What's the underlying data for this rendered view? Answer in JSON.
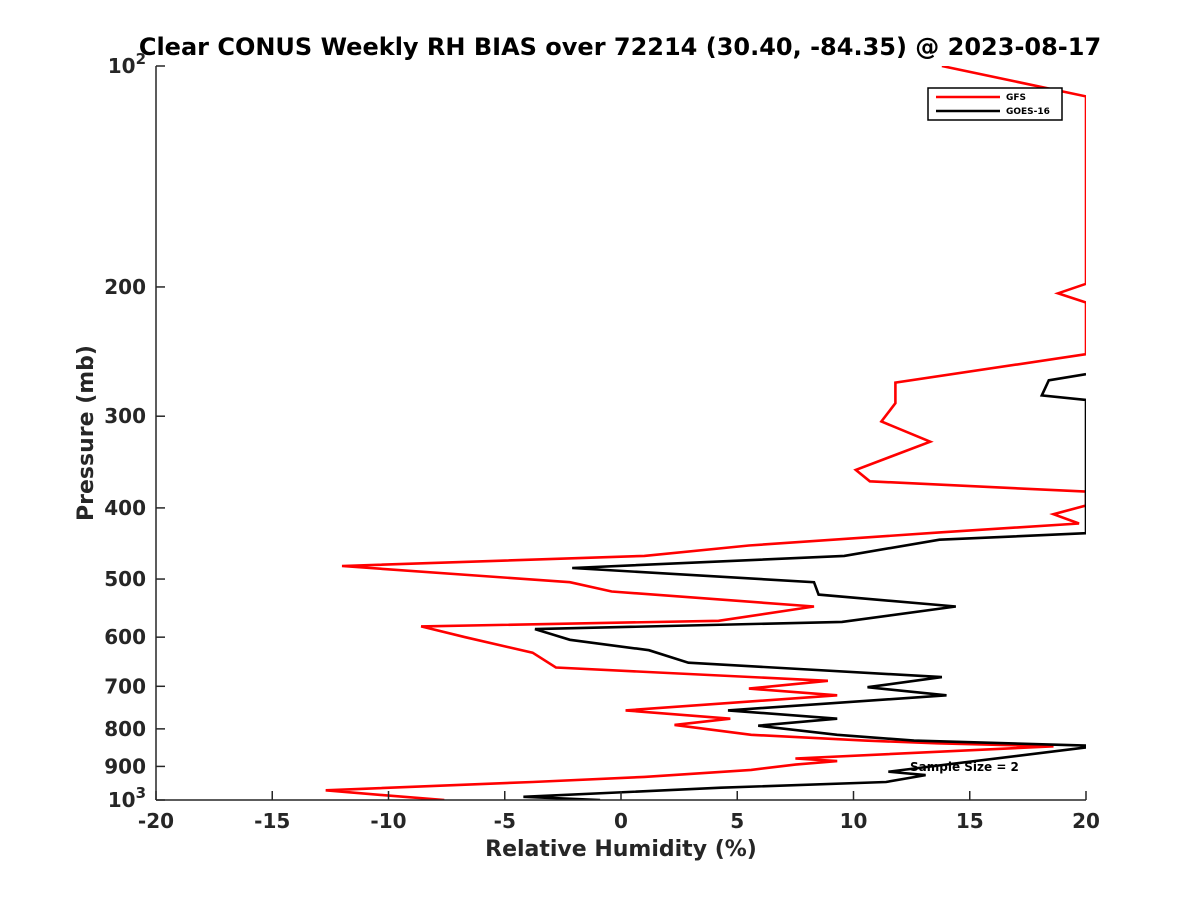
{
  "chart_data": {
    "type": "line",
    "title": "Clear CONUS Weekly RH BIAS over 72214 (30.40, -84.35) @ 2023-08-17",
    "xlabel": "Relative Humidity (%)",
    "ylabel": "Pressure (mb)",
    "xlim": [
      -20,
      20
    ],
    "ylim": [
      100,
      1000
    ],
    "yscale": "log",
    "y_reversed": true,
    "x_ticks": [
      -20,
      -15,
      -10,
      -5,
      0,
      5,
      10,
      15,
      20
    ],
    "x_tick_labels": [
      "-20",
      "-15",
      "-10",
      "-5",
      "0",
      "5",
      "10",
      "15",
      "20"
    ],
    "y_ticks": [
      200,
      300,
      400,
      500,
      600,
      700,
      800,
      900
    ],
    "y_tick_labels": [
      "200",
      "300",
      "400",
      "500",
      "600",
      "700",
      "800",
      "900"
    ],
    "y_decade_ticks": [
      {
        "value": 100,
        "base": "10",
        "exp": "2"
      },
      {
        "value": 1000,
        "base": "10",
        "exp": "3"
      }
    ],
    "legend": {
      "position": "top-right",
      "entries": [
        "GFS",
        "GOES-16"
      ]
    },
    "annotation": "Sample Size = 2",
    "series": [
      {
        "name": "GFS",
        "color": "#ff0000",
        "points": [
          [
            -7.6,
            1000
          ],
          [
            -10.2,
            985
          ],
          [
            -12.7,
            970
          ],
          [
            -3.8,
            945
          ],
          [
            1.0,
            930
          ],
          [
            5.6,
            910
          ],
          [
            7.5,
            895
          ],
          [
            9.3,
            885
          ],
          [
            7.5,
            878
          ],
          [
            18.6,
            845
          ],
          [
            13.6,
            837
          ],
          [
            10.5,
            830
          ],
          [
            5.6,
            815
          ],
          [
            2.3,
            790
          ],
          [
            4.7,
            775
          ],
          [
            0.2,
            755
          ],
          [
            9.3,
            720
          ],
          [
            5.5,
            705
          ],
          [
            8.9,
            688
          ],
          [
            -2.8,
            660
          ],
          [
            -3.8,
            630
          ],
          [
            -6.7,
            600
          ],
          [
            -8.6,
            580
          ],
          [
            4.2,
            570
          ],
          [
            8.3,
            545
          ],
          [
            -0.4,
            520
          ],
          [
            -2.2,
            505
          ],
          [
            -12.0,
            480
          ],
          [
            1.0,
            465
          ],
          [
            5.5,
            450
          ],
          [
            13.7,
            432
          ],
          [
            19.7,
            420
          ],
          [
            18.6,
            408
          ],
          [
            20.0,
            397
          ],
          [
            20.0,
            380
          ],
          [
            10.7,
            368
          ],
          [
            10.1,
            355
          ],
          [
            13.3,
            325
          ],
          [
            11.2,
            305
          ],
          [
            11.8,
            288
          ],
          [
            11.8,
            270
          ],
          [
            20.0,
            247
          ],
          [
            20.0,
            210
          ],
          [
            18.8,
            204
          ],
          [
            20.0,
            198
          ],
          [
            20.0,
            110
          ],
          [
            13.8,
            100
          ]
        ]
      },
      {
        "name": "GOES-16",
        "color": "#000000",
        "points": [
          [
            -0.9,
            1000
          ],
          [
            -4.2,
            990
          ],
          [
            4.3,
            962
          ],
          [
            11.4,
            945
          ],
          [
            13.1,
            925
          ],
          [
            11.5,
            915
          ],
          [
            20.0,
            848
          ],
          [
            20.0,
            843
          ],
          [
            12.6,
            830
          ],
          [
            9.3,
            815
          ],
          [
            5.9,
            792
          ],
          [
            9.3,
            775
          ],
          [
            4.6,
            755
          ],
          [
            14.0,
            720
          ],
          [
            10.6,
            702
          ],
          [
            13.8,
            680
          ],
          [
            2.9,
            650
          ],
          [
            1.2,
            625
          ],
          [
            -2.2,
            605
          ],
          [
            -3.7,
            585
          ],
          [
            9.5,
            572
          ],
          [
            14.4,
            545
          ],
          [
            8.5,
            525
          ],
          [
            8.3,
            505
          ],
          [
            -2.1,
            483
          ],
          [
            9.6,
            465
          ],
          [
            13.7,
            442
          ],
          [
            20.0,
            433
          ],
          [
            20.0,
            285
          ],
          [
            18.1,
            281
          ],
          [
            18.4,
            268
          ],
          [
            20.0,
            263
          ]
        ]
      }
    ]
  }
}
